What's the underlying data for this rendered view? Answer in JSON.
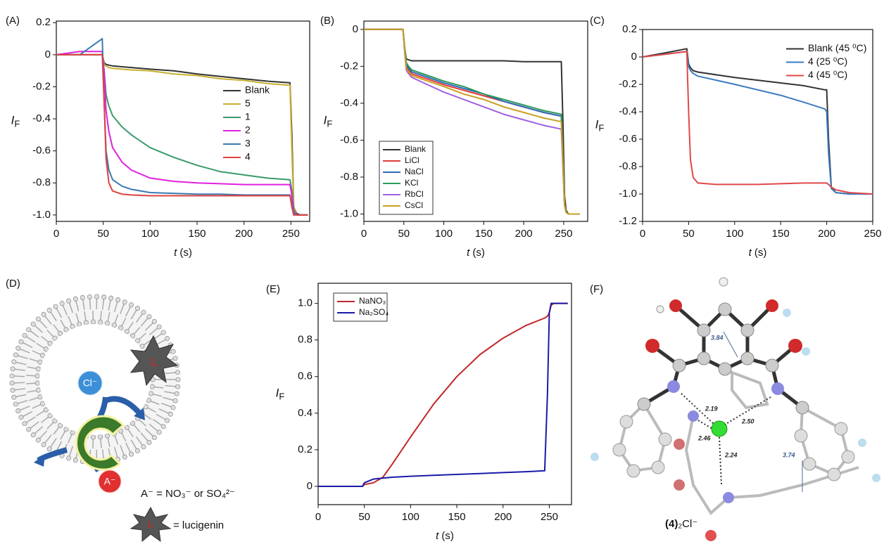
{
  "chart_data": [
    {
      "type": "line",
      "panel_label": "(A)",
      "ylabel": "I",
      "ylabel_sub": "F",
      "xlabel_var": "t",
      "xlabel_unit": "(s)",
      "xlim": [
        0,
        270
      ],
      "ylim": [
        -1.04,
        0.21
      ],
      "xticks": [
        0,
        50,
        100,
        150,
        200,
        250
      ],
      "yticks": [
        0.2,
        0,
        -0.2,
        -0.4,
        -0.6,
        -0.8,
        {
          "value": -1,
          "label": "-1.0"
        }
      ],
      "legend": "right",
      "legend_frame": false,
      "x": [
        0,
        25,
        49,
        51,
        53,
        56,
        60,
        70,
        80,
        100,
        125,
        150,
        175,
        200,
        225,
        249,
        251,
        253,
        256,
        260,
        268
      ],
      "series": [
        {
          "name": "Blank",
          "color": "#333333",
          "values": [
            0,
            0,
            0,
            -0.05,
            -0.06,
            -0.065,
            -0.07,
            -0.075,
            -0.08,
            -0.09,
            -0.1,
            -0.12,
            -0.135,
            -0.15,
            -0.165,
            -0.175,
            -0.5,
            -0.95,
            -0.99,
            -1,
            -1
          ]
        },
        {
          "name": "5",
          "color": "#c8b030",
          "values": [
            0,
            0,
            0,
            -0.06,
            -0.07,
            -0.08,
            -0.085,
            -0.09,
            -0.095,
            -0.1,
            -0.12,
            -0.13,
            -0.15,
            -0.16,
            -0.18,
            -0.19,
            -0.6,
            -0.95,
            -1,
            -1,
            -1
          ]
        },
        {
          "name": "1",
          "color": "#3a9a6a",
          "values": [
            0,
            0,
            0,
            -0.1,
            -0.25,
            -0.32,
            -0.38,
            -0.45,
            -0.5,
            -0.58,
            -0.64,
            -0.69,
            -0.73,
            -0.75,
            -0.77,
            -0.78,
            -0.85,
            -0.97,
            -1,
            -1,
            -1
          ]
        },
        {
          "name": "2",
          "color": "#e020e0",
          "values": [
            0,
            0.02,
            0.02,
            -0.1,
            -0.35,
            -0.48,
            -0.58,
            -0.67,
            -0.72,
            -0.77,
            -0.79,
            -0.8,
            -0.805,
            -0.81,
            -0.81,
            -0.81,
            -0.88,
            -0.98,
            -1,
            -1,
            -1
          ]
        },
        {
          "name": "3",
          "color": "#3a7ab0",
          "values": [
            0,
            0,
            0.1,
            -0.3,
            -0.6,
            -0.72,
            -0.78,
            -0.82,
            -0.84,
            -0.86,
            -0.865,
            -0.87,
            -0.87,
            -0.875,
            -0.875,
            -0.875,
            -0.93,
            -0.99,
            -1,
            -1,
            -1
          ]
        },
        {
          "name": "4",
          "color": "#e04040",
          "values": [
            0,
            0,
            0,
            -0.3,
            -0.65,
            -0.8,
            -0.85,
            -0.87,
            -0.875,
            -0.88,
            -0.88,
            -0.88,
            -0.88,
            -0.88,
            -0.88,
            -0.88,
            -0.95,
            -1,
            -1,
            -1,
            -1
          ]
        }
      ]
    },
    {
      "type": "line",
      "panel_label": "(B)",
      "ylabel": "I",
      "ylabel_sub": "F",
      "xlabel_var": "t",
      "xlabel_unit": "(s)",
      "xlim": [
        0,
        280
      ],
      "ylim": [
        -1.04,
        0.045
      ],
      "xticks": [
        0,
        50,
        100,
        150,
        200,
        250
      ],
      "yticks": [
        0,
        -0.2,
        -0.4,
        -0.6,
        -0.8,
        {
          "value": -1,
          "label": "-1.0"
        }
      ],
      "legend": "lower left",
      "legend_frame": true,
      "x": [
        0,
        25,
        49,
        51,
        53,
        56,
        60,
        80,
        100,
        125,
        150,
        175,
        200,
        225,
        247,
        249,
        251,
        253,
        256,
        262,
        270
      ],
      "series": [
        {
          "name": "Blank",
          "color": "#333333",
          "values": [
            0,
            0,
            0,
            -0.1,
            -0.16,
            -0.165,
            -0.17,
            -0.17,
            -0.17,
            -0.17,
            -0.17,
            -0.17,
            -0.175,
            -0.175,
            -0.175,
            -0.5,
            -0.9,
            -0.98,
            -1,
            -1,
            -1
          ]
        },
        {
          "name": "LiCl",
          "color": "#e03a3a",
          "values": [
            0,
            0,
            0,
            -0.1,
            -0.2,
            -0.22,
            -0.24,
            -0.27,
            -0.3,
            -0.33,
            -0.36,
            -0.39,
            -0.42,
            -0.45,
            -0.47,
            -0.7,
            -0.95,
            -0.99,
            -1,
            -1,
            -1
          ]
        },
        {
          "name": "NaCl",
          "color": "#2a6ab8",
          "values": [
            0,
            0,
            0,
            -0.1,
            -0.19,
            -0.21,
            -0.23,
            -0.26,
            -0.29,
            -0.32,
            -0.35,
            -0.39,
            -0.42,
            -0.45,
            -0.47,
            -0.7,
            -0.95,
            -0.99,
            -1,
            -1,
            -1
          ]
        },
        {
          "name": "KCl",
          "color": "#2a9a5a",
          "values": [
            0,
            0,
            0,
            -0.1,
            -0.18,
            -0.2,
            -0.22,
            -0.25,
            -0.28,
            -0.31,
            -0.35,
            -0.38,
            -0.41,
            -0.44,
            -0.46,
            -0.7,
            -0.95,
            -0.99,
            -1,
            -1,
            -1
          ]
        },
        {
          "name": "RbCl",
          "color": "#a060e0",
          "values": [
            0,
            0,
            0,
            -0.12,
            -0.22,
            -0.24,
            -0.26,
            -0.3,
            -0.34,
            -0.38,
            -0.42,
            -0.46,
            -0.49,
            -0.52,
            -0.54,
            -0.75,
            -0.95,
            -0.99,
            -1,
            -1,
            -1
          ]
        },
        {
          "name": "CsCl",
          "color": "#c8a020",
          "values": [
            0,
            0,
            0,
            -0.11,
            -0.21,
            -0.23,
            -0.25,
            -0.28,
            -0.31,
            -0.35,
            -0.38,
            -0.42,
            -0.45,
            -0.48,
            -0.5,
            -0.72,
            -0.95,
            -0.99,
            -1,
            -1,
            -1
          ]
        }
      ]
    },
    {
      "type": "line",
      "panel_label": "(C)",
      "ylabel": "I",
      "ylabel_sub": "F",
      "xlabel_var": "t",
      "xlabel_unit": "(s)",
      "xlim": [
        0,
        250
      ],
      "ylim": [
        -1.2,
        0.2
      ],
      "xticks": [
        0,
        50,
        100,
        150,
        200,
        250
      ],
      "yticks": [
        0.2,
        0,
        -0.2,
        -0.4,
        -0.6,
        -0.8,
        {
          "value": -1,
          "label": "-1.0"
        },
        -1.2
      ],
      "legend": "upper right",
      "legend_frame": false,
      "x": [
        0,
        25,
        48,
        50,
        52,
        55,
        60,
        80,
        100,
        125,
        150,
        175,
        198,
        200,
        202,
        205,
        210,
        225,
        250
      ],
      "series": [
        {
          "name": "Blank (45 ⁰C)",
          "color": "#333333",
          "values": [
            0,
            0.03,
            0.06,
            -0.05,
            -0.08,
            -0.1,
            -0.11,
            -0.13,
            -0.15,
            -0.17,
            -0.19,
            -0.21,
            -0.24,
            -0.24,
            -0.6,
            -0.95,
            -0.99,
            -1,
            -1
          ]
        },
        {
          "name": "4 (25 ⁰C)",
          "color": "#3a7ac0",
          "values": [
            0,
            0.02,
            0.04,
            -0.07,
            -0.1,
            -0.12,
            -0.14,
            -0.17,
            -0.2,
            -0.24,
            -0.28,
            -0.33,
            -0.38,
            -0.4,
            -0.7,
            -0.96,
            -0.99,
            -1,
            -1
          ]
        },
        {
          "name": "4 (45 ⁰C)",
          "color": "#e04848",
          "values": [
            0,
            0.02,
            0.04,
            -0.4,
            -0.75,
            -0.88,
            -0.92,
            -0.93,
            -0.93,
            -0.93,
            -0.925,
            -0.92,
            -0.92,
            -0.92,
            -0.93,
            -0.95,
            -0.97,
            -0.99,
            -1
          ]
        }
      ]
    },
    {
      "type": "line",
      "panel_label": "(E)",
      "ylabel": "I",
      "ylabel_sub": "F",
      "xlabel_var": "t",
      "xlabel_unit": "(s)",
      "xlim": [
        0,
        274
      ],
      "ylim": [
        -0.1,
        1.11
      ],
      "xticks": [
        0,
        50,
        100,
        150,
        200,
        250
      ],
      "yticks": [
        0,
        0.2,
        0.4,
        0.6,
        0.8,
        {
          "value": 1,
          "label": "1.0"
        }
      ],
      "legend": "upper left",
      "legend_frame": true,
      "x": [
        0,
        25,
        48,
        50,
        60,
        70,
        80,
        100,
        125,
        150,
        175,
        200,
        225,
        245,
        248,
        250,
        252,
        255,
        260,
        270
      ],
      "series": [
        {
          "name": "NaNO₃",
          "color": "#c0282a",
          "values": [
            0,
            0,
            0,
            0.01,
            0.02,
            0.05,
            0.12,
            0.27,
            0.45,
            0.6,
            0.72,
            0.81,
            0.88,
            0.92,
            0.93,
            0.95,
            0.99,
            1,
            1,
            1
          ]
        },
        {
          "name": "Na₂SO₄",
          "color": "#1a1aa8",
          "values": [
            0,
            0,
            0,
            0.02,
            0.04,
            0.045,
            0.05,
            0.055,
            0.06,
            0.065,
            0.07,
            0.075,
            0.08,
            0.085,
            0.5,
            0.95,
            1,
            1,
            1,
            1
          ]
        }
      ]
    }
  ],
  "panel_d": {
    "panel_label": "(D)",
    "chloride": "Cl⁻",
    "anion": "A⁻",
    "lucigenin_symbol": "L",
    "key_anion": "A⁻ = NO₃⁻ or SO₄²⁻",
    "key_symbol": "L",
    "key_lucigenin": "= lucigenin"
  },
  "panel_f": {
    "panel_label": "(F)",
    "distances": [
      "3.84",
      "2.19",
      "2.50",
      "2.46",
      "2.24",
      "3.74"
    ],
    "caption_bold": "(4)",
    "caption_rest": "₂Cl⁻"
  }
}
